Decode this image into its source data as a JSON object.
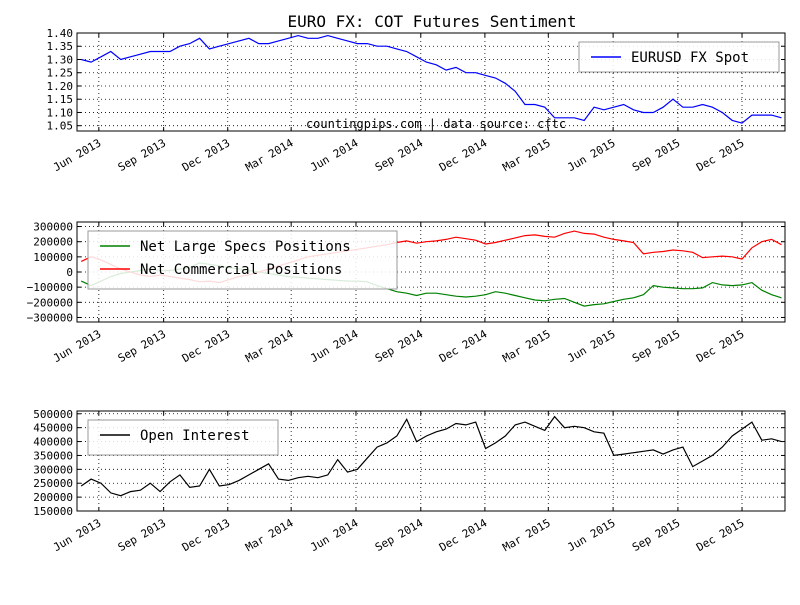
{
  "chart_data": [
    {
      "type": "line",
      "title": "EURO FX: COT Futures Sentiment",
      "annotation": "countingpips.com | data source: cftc",
      "x_tick_labels": [
        "Jun 2013",
        "Sep 2013",
        "Dec 2013",
        "Mar 2014",
        "Jun 2014",
        "Sep 2014",
        "Dec 2014",
        "Mar 2015",
        "Jun 2015",
        "Sep 2015",
        "Dec 2015"
      ],
      "y_tick_labels": [
        "1.40",
        "1.35",
        "1.30",
        "1.25",
        "1.20",
        "1.15",
        "1.10",
        "1.05"
      ],
      "ylim": [
        1.03,
        1.4
      ],
      "grid": true,
      "legend_position": "top-right",
      "series": [
        {
          "name": "EURUSD FX Spot",
          "color": "#0000ff",
          "x": [
            "2013-05-07",
            "2013-05-21",
            "2013-06-04",
            "2013-06-18",
            "2013-07-02",
            "2013-07-16",
            "2013-07-30",
            "2013-08-13",
            "2013-08-27",
            "2013-09-10",
            "2013-09-24",
            "2013-10-08",
            "2013-10-22",
            "2013-11-05",
            "2013-11-19",
            "2013-12-03",
            "2013-12-17",
            "2013-12-31",
            "2014-01-14",
            "2014-01-28",
            "2014-02-11",
            "2014-02-25",
            "2014-03-11",
            "2014-03-25",
            "2014-04-08",
            "2014-04-22",
            "2014-05-06",
            "2014-05-20",
            "2014-06-03",
            "2014-06-17",
            "2014-07-01",
            "2014-07-15",
            "2014-07-29",
            "2014-08-12",
            "2014-08-26",
            "2014-09-09",
            "2014-09-23",
            "2014-10-07",
            "2014-10-21",
            "2014-11-04",
            "2014-11-18",
            "2014-12-02",
            "2014-12-16",
            "2014-12-30",
            "2015-01-13",
            "2015-01-27",
            "2015-02-10",
            "2015-02-24",
            "2015-03-10",
            "2015-03-24",
            "2015-04-07",
            "2015-04-21",
            "2015-05-05",
            "2015-05-19",
            "2015-06-02",
            "2015-06-16",
            "2015-06-30",
            "2015-07-14",
            "2015-07-28",
            "2015-08-11",
            "2015-08-25",
            "2015-09-08",
            "2015-09-22",
            "2015-10-06",
            "2015-10-20",
            "2015-11-03",
            "2015-11-17",
            "2015-12-01",
            "2015-12-15",
            "2015-12-29",
            "2016-01-12",
            "2016-01-26"
          ],
          "values": [
            1.3,
            1.29,
            1.31,
            1.33,
            1.3,
            1.31,
            1.32,
            1.33,
            1.33,
            1.33,
            1.35,
            1.36,
            1.38,
            1.34,
            1.35,
            1.36,
            1.37,
            1.38,
            1.36,
            1.36,
            1.37,
            1.38,
            1.39,
            1.38,
            1.38,
            1.39,
            1.38,
            1.37,
            1.36,
            1.36,
            1.35,
            1.35,
            1.34,
            1.33,
            1.31,
            1.29,
            1.28,
            1.26,
            1.27,
            1.25,
            1.25,
            1.24,
            1.23,
            1.21,
            1.18,
            1.13,
            1.13,
            1.12,
            1.08,
            1.08,
            1.08,
            1.07,
            1.12,
            1.11,
            1.12,
            1.13,
            1.11,
            1.1,
            1.1,
            1.12,
            1.15,
            1.12,
            1.12,
            1.13,
            1.12,
            1.1,
            1.07,
            1.06,
            1.09,
            1.09,
            1.09,
            1.08
          ]
        }
      ]
    },
    {
      "type": "line",
      "x_tick_labels": [
        "Jun 2013",
        "Sep 2013",
        "Dec 2013",
        "Mar 2014",
        "Jun 2014",
        "Sep 2014",
        "Dec 2014",
        "Mar 2015",
        "Jun 2015",
        "Sep 2015",
        "Dec 2015"
      ],
      "y_tick_labels": [
        "300000",
        "200000",
        "100000",
        "0",
        "−100000",
        "−200000",
        "−300000"
      ],
      "ylim": [
        -330000,
        330000
      ],
      "grid": true,
      "legend_position": "top-left",
      "series": [
        {
          "name": "Net Large Specs Positions",
          "color": "#008000",
          "x": [
            "2013-05-07",
            "2013-05-21",
            "2013-06-04",
            "2013-06-18",
            "2013-07-02",
            "2013-07-16",
            "2013-07-30",
            "2013-08-13",
            "2013-08-27",
            "2013-09-10",
            "2013-09-24",
            "2013-10-08",
            "2013-10-22",
            "2013-11-05",
            "2013-11-19",
            "2013-12-03",
            "2013-12-17",
            "2013-12-31",
            "2014-01-14",
            "2014-01-28",
            "2014-02-11",
            "2014-02-25",
            "2014-03-11",
            "2014-03-25",
            "2014-04-08",
            "2014-04-22",
            "2014-05-06",
            "2014-05-20",
            "2014-06-03",
            "2014-06-17",
            "2014-07-01",
            "2014-07-15",
            "2014-07-29",
            "2014-08-12",
            "2014-08-26",
            "2014-09-09",
            "2014-09-23",
            "2014-10-07",
            "2014-10-21",
            "2014-11-04",
            "2014-11-18",
            "2014-12-02",
            "2014-12-16",
            "2014-12-30",
            "2015-01-13",
            "2015-01-27",
            "2015-02-10",
            "2015-02-24",
            "2015-03-10",
            "2015-03-24",
            "2015-04-07",
            "2015-04-21",
            "2015-05-05",
            "2015-05-19",
            "2015-06-02",
            "2015-06-16",
            "2015-06-30",
            "2015-07-14",
            "2015-07-28",
            "2015-08-11",
            "2015-08-25",
            "2015-09-08",
            "2015-09-22",
            "2015-10-06",
            "2015-10-20",
            "2015-11-03",
            "2015-11-17",
            "2015-12-01",
            "2015-12-15",
            "2015-12-29",
            "2016-01-12",
            "2016-01-26"
          ],
          "values": [
            -60000,
            -90000,
            -60000,
            -30000,
            -10000,
            0,
            10000,
            20000,
            10000,
            10000,
            20000,
            30000,
            60000,
            50000,
            40000,
            30000,
            20000,
            10000,
            0,
            -10000,
            -20000,
            -30000,
            -35000,
            -40000,
            -45000,
            -50000,
            -55000,
            -60000,
            -60000,
            -65000,
            -90000,
            -110000,
            -130000,
            -140000,
            -155000,
            -140000,
            -140000,
            -150000,
            -160000,
            -165000,
            -160000,
            -150000,
            -130000,
            -140000,
            -155000,
            -170000,
            -185000,
            -190000,
            -180000,
            -175000,
            -200000,
            -225000,
            -215000,
            -210000,
            -195000,
            -180000,
            -170000,
            -150000,
            -90000,
            -100000,
            -105000,
            -110000,
            -110000,
            -105000,
            -70000,
            -85000,
            -90000,
            -85000,
            -70000,
            -120000,
            -150000,
            -170000
          ]
        },
        {
          "name": "Net Commercial Positions",
          "color": "#ff0000",
          "x": [
            "2013-05-07",
            "2013-05-21",
            "2013-06-04",
            "2013-06-18",
            "2013-07-02",
            "2013-07-16",
            "2013-07-30",
            "2013-08-13",
            "2013-08-27",
            "2013-09-10",
            "2013-09-24",
            "2013-10-08",
            "2013-10-22",
            "2013-11-05",
            "2013-11-19",
            "2013-12-03",
            "2013-12-17",
            "2013-12-31",
            "2014-01-14",
            "2014-01-28",
            "2014-02-11",
            "2014-02-25",
            "2014-03-11",
            "2014-03-25",
            "2014-04-08",
            "2014-04-22",
            "2014-05-06",
            "2014-05-20",
            "2014-06-03",
            "2014-06-17",
            "2014-07-01",
            "2014-07-15",
            "2014-07-29",
            "2014-08-12",
            "2014-08-26",
            "2014-09-09",
            "2014-09-23",
            "2014-10-07",
            "2014-10-21",
            "2014-11-04",
            "2014-11-18",
            "2014-12-02",
            "2014-12-16",
            "2014-12-30",
            "2015-01-13",
            "2015-01-27",
            "2015-02-10",
            "2015-02-24",
            "2015-03-10",
            "2015-03-24",
            "2015-04-07",
            "2015-04-21",
            "2015-05-05",
            "2015-05-19",
            "2015-06-02",
            "2015-06-16",
            "2015-06-30",
            "2015-07-14",
            "2015-07-28",
            "2015-08-11",
            "2015-08-25",
            "2015-09-08",
            "2015-09-22",
            "2015-10-06",
            "2015-10-20",
            "2015-11-03",
            "2015-11-17",
            "2015-12-01",
            "2015-12-15",
            "2015-12-29",
            "2016-01-12",
            "2016-01-26"
          ],
          "values": [
            70000,
            100000,
            80000,
            50000,
            20000,
            0,
            -20000,
            -30000,
            -20000,
            -30000,
            -40000,
            -50000,
            -65000,
            -60000,
            -70000,
            -50000,
            -30000,
            -20000,
            0,
            20000,
            40000,
            60000,
            80000,
            100000,
            110000,
            120000,
            130000,
            140000,
            150000,
            160000,
            170000,
            180000,
            195000,
            205000,
            190000,
            200000,
            205000,
            215000,
            230000,
            220000,
            210000,
            185000,
            195000,
            210000,
            225000,
            240000,
            245000,
            235000,
            230000,
            255000,
            270000,
            255000,
            250000,
            230000,
            215000,
            205000,
            195000,
            120000,
            130000,
            135000,
            145000,
            140000,
            130000,
            95000,
            100000,
            105000,
            100000,
            85000,
            160000,
            200000,
            215000,
            180000
          ]
        }
      ]
    },
    {
      "type": "line",
      "x_tick_labels": [
        "Jun 2013",
        "Sep 2013",
        "Dec 2013",
        "Mar 2014",
        "Jun 2014",
        "Sep 2014",
        "Dec 2014",
        "Mar 2015",
        "Jun 2015",
        "Sep 2015",
        "Dec 2015"
      ],
      "y_tick_labels": [
        "500000",
        "450000",
        "400000",
        "350000",
        "300000",
        "250000",
        "200000",
        "150000"
      ],
      "ylim": [
        150000,
        510000
      ],
      "grid": true,
      "legend_position": "top-left",
      "series": [
        {
          "name": "Open Interest",
          "color": "#000000",
          "x": [
            "2013-05-07",
            "2013-05-21",
            "2013-06-04",
            "2013-06-18",
            "2013-07-02",
            "2013-07-16",
            "2013-07-30",
            "2013-08-13",
            "2013-08-27",
            "2013-09-10",
            "2013-09-24",
            "2013-10-08",
            "2013-10-22",
            "2013-11-05",
            "2013-11-19",
            "2013-12-03",
            "2013-12-17",
            "2013-12-31",
            "2014-01-14",
            "2014-01-28",
            "2014-02-11",
            "2014-02-25",
            "2014-03-11",
            "2014-03-25",
            "2014-04-08",
            "2014-04-22",
            "2014-05-06",
            "2014-05-20",
            "2014-06-03",
            "2014-06-17",
            "2014-07-01",
            "2014-07-15",
            "2014-07-29",
            "2014-08-12",
            "2014-08-26",
            "2014-09-09",
            "2014-09-23",
            "2014-10-07",
            "2014-10-21",
            "2014-11-04",
            "2014-11-18",
            "2014-12-02",
            "2014-12-16",
            "2014-12-30",
            "2015-01-13",
            "2015-01-27",
            "2015-02-10",
            "2015-02-24",
            "2015-03-10",
            "2015-03-24",
            "2015-04-07",
            "2015-04-21",
            "2015-05-05",
            "2015-05-19",
            "2015-06-02",
            "2015-06-16",
            "2015-06-30",
            "2015-07-14",
            "2015-07-28",
            "2015-08-11",
            "2015-08-25",
            "2015-09-08",
            "2015-09-22",
            "2015-10-06",
            "2015-10-20",
            "2015-11-03",
            "2015-11-17",
            "2015-12-01",
            "2015-12-15",
            "2015-12-29",
            "2016-01-12",
            "2016-01-26"
          ],
          "values": [
            240000,
            265000,
            250000,
            215000,
            205000,
            220000,
            225000,
            250000,
            220000,
            255000,
            280000,
            235000,
            240000,
            300000,
            240000,
            245000,
            260000,
            280000,
            300000,
            320000,
            265000,
            260000,
            270000,
            275000,
            270000,
            280000,
            335000,
            290000,
            300000,
            340000,
            380000,
            395000,
            420000,
            480000,
            400000,
            420000,
            435000,
            445000,
            465000,
            460000,
            470000,
            375000,
            395000,
            420000,
            460000,
            470000,
            455000,
            440000,
            490000,
            450000,
            455000,
            450000,
            435000,
            430000,
            350000,
            355000,
            360000,
            365000,
            370000,
            355000,
            370000,
            380000,
            310000,
            330000,
            350000,
            380000,
            420000,
            445000,
            470000,
            405000,
            410000,
            400000
          ]
        }
      ]
    }
  ]
}
